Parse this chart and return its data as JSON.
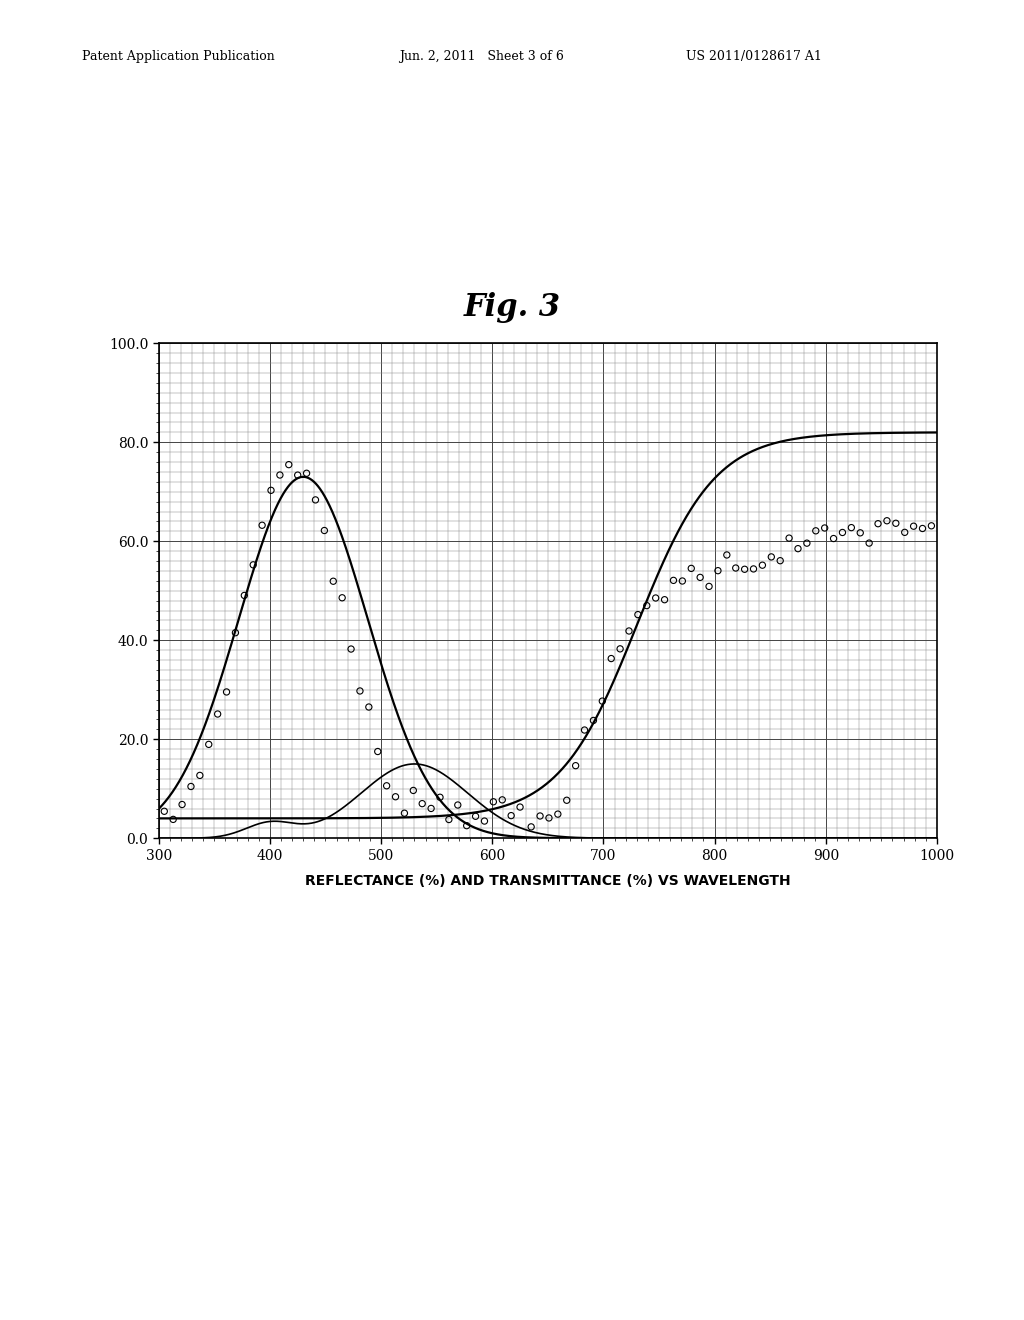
{
  "title": "Fig. 3",
  "xlabel": "REFLECTANCE (%) AND TRANSMITTANCE (%) VS WAVELENGTH",
  "xlim": [
    300,
    1000
  ],
  "ylim": [
    0.0,
    100.0
  ],
  "yticks": [
    0.0,
    20.0,
    40.0,
    60.0,
    80.0,
    100.0
  ],
  "xticks": [
    300,
    400,
    500,
    600,
    700,
    800,
    900,
    1000
  ],
  "header_left": "Patent Application Publication",
  "header_mid": "Jun. 2, 2011   Sheet 3 of 6",
  "header_right": "US 2011/0128617 A1",
  "background_color": "#ffffff"
}
